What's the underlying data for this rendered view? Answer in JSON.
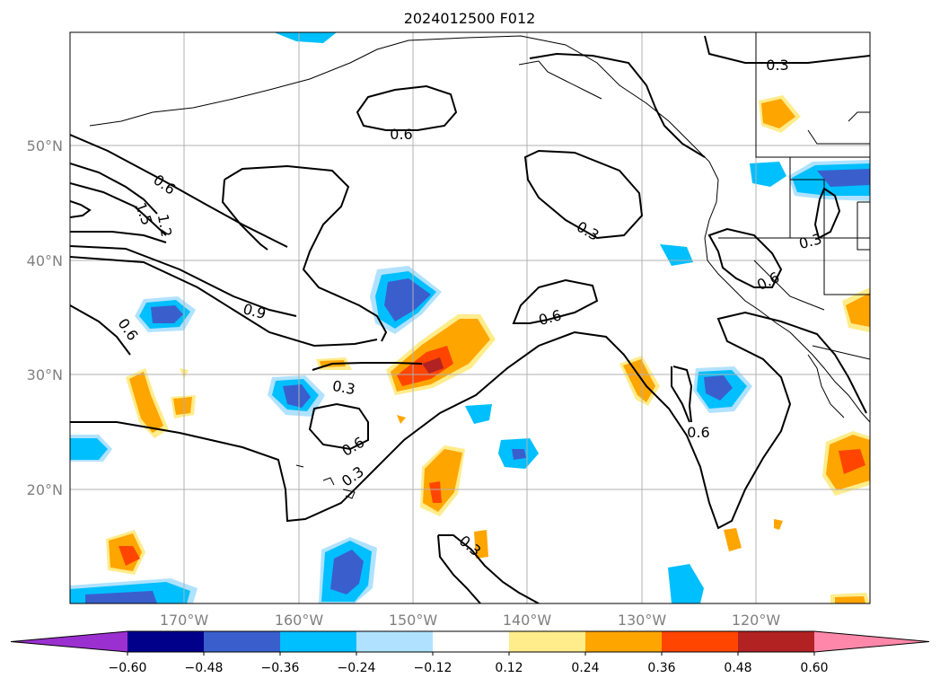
{
  "title": "2024012500 F012",
  "map": {
    "lat_labels": [
      "50°N",
      "40°N",
      "30°N",
      "20°N"
    ],
    "lon_labels": [
      "170°W",
      "160°W",
      "150°W",
      "140°W",
      "130°W",
      "120°W"
    ],
    "lon_range": [
      -180,
      -110
    ],
    "lat_range": [
      10,
      60
    ],
    "grid": true
  },
  "contour_labels": [
    "0.6",
    "0.3",
    "0.6",
    "1.5",
    "1.2",
    "0.9",
    "0.6",
    "0.3",
    "0.6",
    "0.3",
    "0.6",
    "0.3",
    "0.3",
    "0.6",
    "0.6",
    "0.3"
  ],
  "colorbar": {
    "tick_labels": [
      "−0.60",
      "−0.48",
      "−0.36",
      "−0.24",
      "−0.12",
      "0.12",
      "0.24",
      "0.36",
      "0.48",
      "0.60"
    ],
    "colors": [
      "#9b30d0",
      "#00008b",
      "#3a5fcd",
      "#00bfff",
      "#b0e2ff",
      "#ffffff",
      "#ffec8b",
      "#ffa500",
      "#ff4500",
      "#b22222",
      "#ff88aa"
    ]
  }
}
